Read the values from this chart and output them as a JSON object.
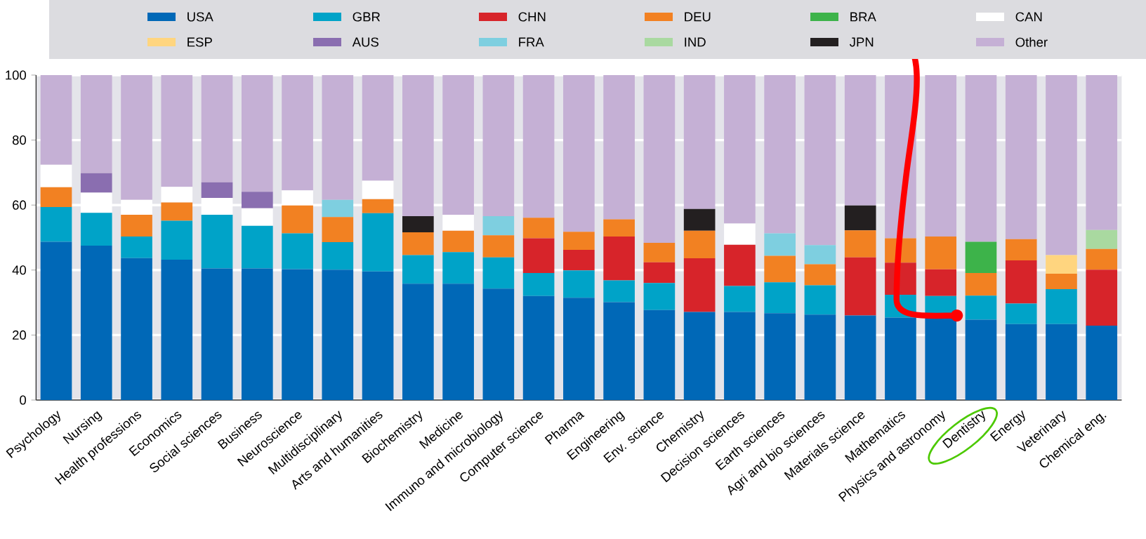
{
  "chart_data": {
    "type": "bar",
    "stacked": true,
    "grid": "y",
    "legend": "top",
    "categories": [
      "Psychology",
      "Nursing",
      "Health professions",
      "Economics",
      "Social sciences",
      "Business",
      "Neuroscience",
      "Multidisciplinary",
      "Arts and humanities",
      "Biochemistry",
      "Medicine",
      "Immuno and microbiology",
      "Computer science",
      "Pharma",
      "Engineering",
      "Env. science",
      "Chemistry",
      "Decision sciences",
      "Earth sciences",
      "Agri and bio sciences",
      "Materials science",
      "Mathematics",
      "Physics and astronomy",
      "Dentistry",
      "Energy",
      "Veterinary",
      "Chemical eng."
    ],
    "ylim": [
      0,
      100
    ],
    "yticks": [
      0,
      20,
      40,
      60,
      80,
      100
    ],
    "series": [
      {
        "name": "USA",
        "color": "#0068b7",
        "values": [
          48.7,
          47.5,
          43.7,
          43.2,
          40.5,
          40.5,
          40.3,
          40.1,
          39.6,
          35.8,
          35.8,
          34.3,
          32.0,
          31.5,
          30.1,
          27.7,
          27.1,
          27.1,
          26.7,
          26.3,
          26.0,
          25.4,
          25.4,
          24.7,
          23.4,
          23.4,
          22.9
        ]
      },
      {
        "name": "GBR",
        "color": "#00a3c8",
        "values": [
          10.7,
          10.1,
          6.6,
          12.0,
          16.5,
          13.1,
          11.0,
          8.5,
          17.9,
          8.8,
          9.7,
          9.6,
          7.1,
          8.4,
          6.7,
          8.3,
          null,
          8.0,
          9.5,
          9.0,
          null,
          7.0,
          6.6,
          7.4,
          6.3,
          10.7,
          null
        ]
      },
      {
        "name": "CHN",
        "color": "#d7242a",
        "values": [
          null,
          null,
          null,
          null,
          null,
          null,
          null,
          null,
          null,
          null,
          null,
          null,
          10.7,
          6.3,
          13.5,
          6.4,
          16.5,
          12.7,
          null,
          null,
          17.9,
          9.9,
          8.2,
          null,
          13.3,
          null,
          17.2
        ]
      },
      {
        "name": "DEU",
        "color": "#f28122",
        "values": [
          6.1,
          null,
          6.7,
          5.6,
          null,
          null,
          8.6,
          7.7,
          4.3,
          7.0,
          6.6,
          6.8,
          6.3,
          5.6,
          5.3,
          6.0,
          8.5,
          null,
          8.2,
          6.5,
          8.3,
          7.5,
          10.1,
          7.0,
          6.5,
          4.8,
          6.4
        ]
      },
      {
        "name": "BRA",
        "color": "#3db34a",
        "values": [
          null,
          null,
          null,
          null,
          null,
          null,
          null,
          null,
          null,
          null,
          null,
          null,
          null,
          null,
          null,
          null,
          null,
          null,
          null,
          null,
          null,
          null,
          null,
          9.6,
          null,
          null,
          null
        ]
      },
      {
        "name": "CAN",
        "color": "#ffffff",
        "values": [
          6.9,
          6.2,
          4.6,
          4.8,
          5.2,
          5.4,
          4.6,
          null,
          5.7,
          null,
          4.9,
          null,
          null,
          null,
          null,
          null,
          null,
          6.5,
          null,
          null,
          null,
          null,
          null,
          null,
          null,
          null,
          null
        ]
      },
      {
        "name": "ESP",
        "color": "#ffd57f",
        "values": [
          null,
          null,
          null,
          null,
          null,
          null,
          null,
          null,
          null,
          null,
          null,
          null,
          null,
          null,
          null,
          null,
          null,
          null,
          null,
          null,
          null,
          null,
          null,
          null,
          null,
          5.7,
          null
        ]
      },
      {
        "name": "AUS",
        "color": "#8a6eb0",
        "values": [
          null,
          6.0,
          null,
          null,
          4.8,
          5.1,
          null,
          null,
          null,
          null,
          null,
          null,
          null,
          null,
          null,
          null,
          null,
          null,
          null,
          null,
          null,
          null,
          null,
          null,
          null,
          null,
          null
        ]
      },
      {
        "name": "FRA",
        "color": "#7ecfe0",
        "values": [
          null,
          null,
          null,
          null,
          null,
          null,
          null,
          5.3,
          null,
          null,
          null,
          5.9,
          null,
          null,
          null,
          null,
          null,
          null,
          6.9,
          5.9,
          null,
          null,
          null,
          null,
          null,
          null,
          null
        ]
      },
      {
        "name": "IND",
        "color": "#a9d9a0",
        "values": [
          null,
          null,
          null,
          null,
          null,
          null,
          null,
          null,
          null,
          null,
          null,
          null,
          null,
          null,
          null,
          null,
          null,
          null,
          null,
          null,
          null,
          null,
          null,
          null,
          null,
          null,
          5.8
        ]
      },
      {
        "name": "JPN",
        "color": "#231f20",
        "values": [
          null,
          null,
          null,
          null,
          null,
          null,
          null,
          null,
          null,
          5.0,
          null,
          null,
          null,
          null,
          null,
          null,
          6.7,
          null,
          null,
          null,
          7.7,
          null,
          null,
          null,
          null,
          null,
          null
        ]
      },
      {
        "name": "Other",
        "color": "#c5b0d5",
        "values": [
          27.6,
          30.2,
          38.4,
          34.4,
          33.0,
          35.9,
          35.5,
          38.4,
          32.5,
          43.4,
          43.0,
          43.4,
          43.9,
          48.2,
          44.4,
          51.6,
          41.2,
          45.7,
          48.7,
          52.3,
          40.1,
          50.2,
          49.7,
          51.3,
          50.5,
          55.4,
          47.7
        ]
      }
    ]
  }
}
